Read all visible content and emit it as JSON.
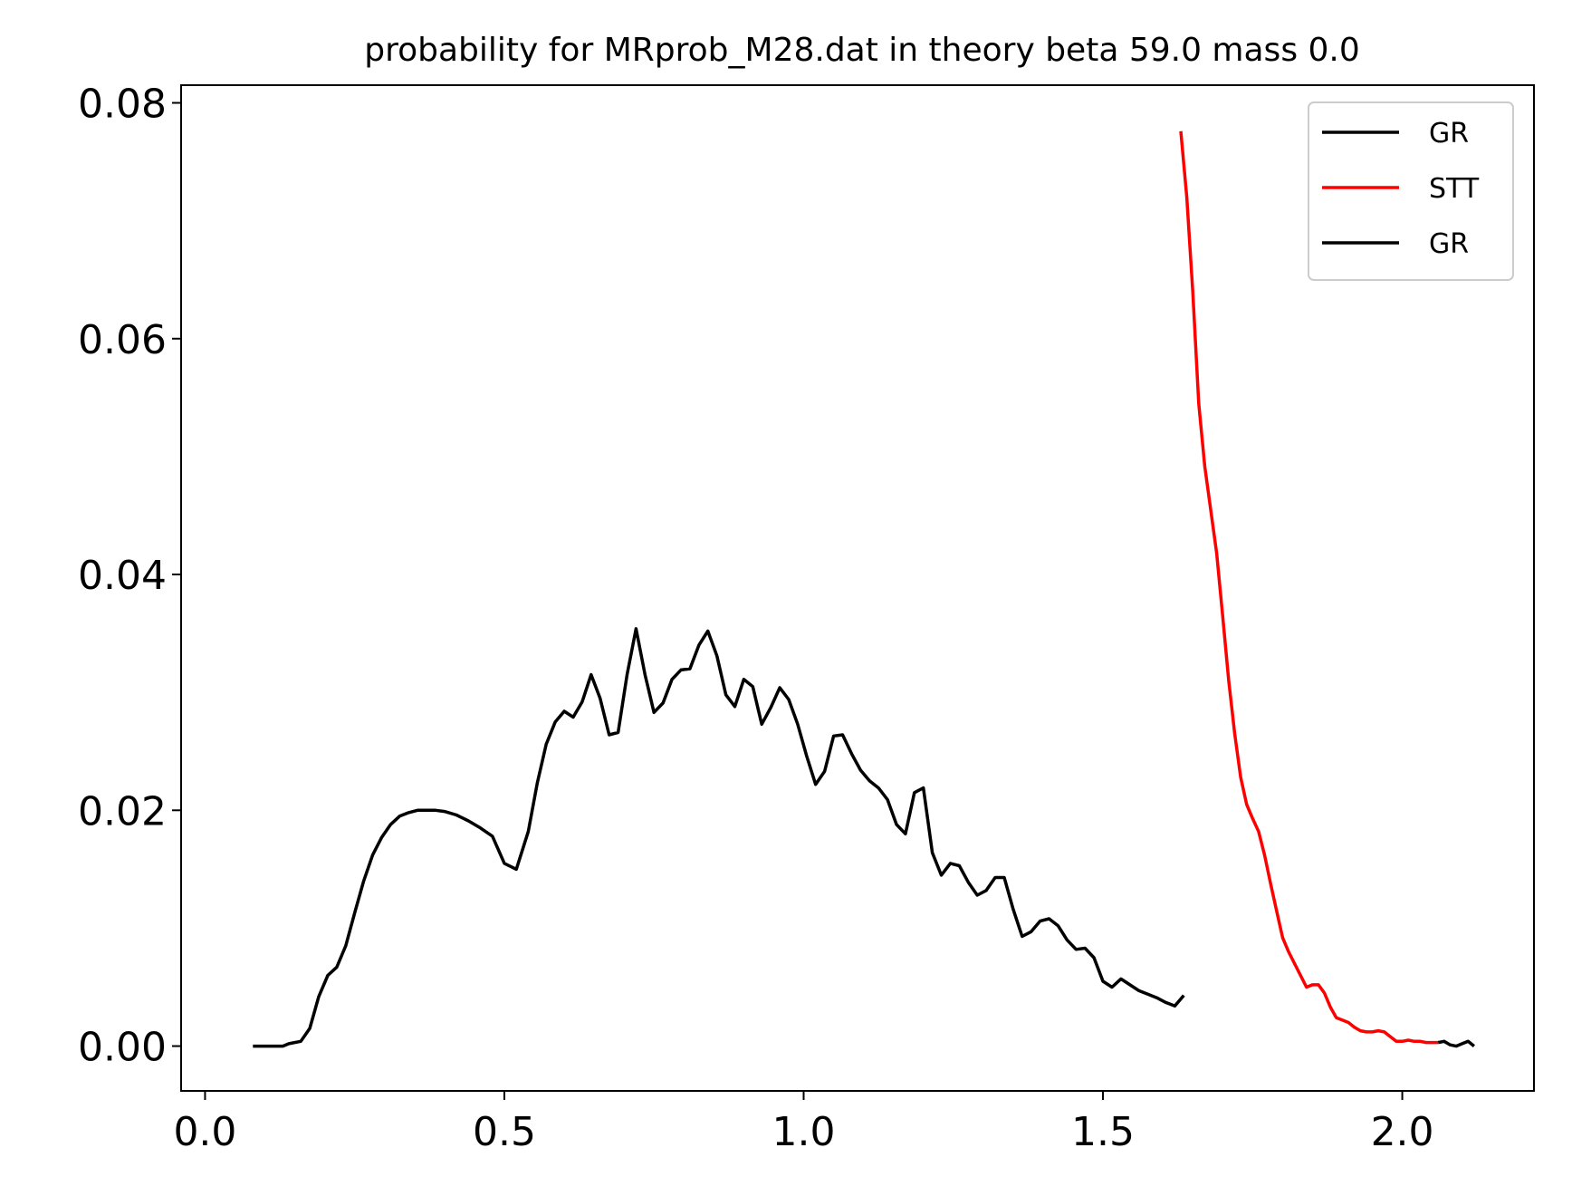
{
  "chart_data": {
    "type": "line",
    "title": "probability for MRprob_M28.dat in theory beta 59.0 mass 0.0",
    "xlabel": "",
    "ylabel": "",
    "xlim": [
      -0.04,
      2.22
    ],
    "ylim": [
      -0.0038,
      0.0815
    ],
    "xticks": [
      0.0,
      0.5,
      1.0,
      1.5,
      2.0
    ],
    "xtick_labels": [
      "0.0",
      "0.5",
      "1.0",
      "1.5",
      "2.0"
    ],
    "yticks": [
      0.0,
      0.02,
      0.04,
      0.06,
      0.08
    ],
    "ytick_labels": [
      "0.00",
      "0.02",
      "0.04",
      "0.06",
      "0.08"
    ],
    "grid": false,
    "legend_position": "upper right",
    "legend": [
      "GR",
      "STT",
      "GR"
    ],
    "series": [
      {
        "name": "GR",
        "color": "#000000",
        "x": [
          0.08,
          0.09,
          0.1,
          0.11,
          0.12,
          0.13,
          0.14,
          0.16,
          0.175,
          0.19,
          0.205,
          0.22,
          0.235,
          0.25,
          0.265,
          0.28,
          0.295,
          0.31,
          0.325,
          0.34,
          0.355,
          0.37,
          0.385,
          0.4,
          0.42,
          0.44,
          0.46,
          0.48,
          0.5,
          0.52,
          0.54,
          0.555,
          0.57,
          0.585,
          0.6,
          0.615,
          0.63,
          0.645,
          0.66,
          0.675,
          0.69,
          0.705,
          0.72,
          0.735,
          0.75,
          0.765,
          0.78,
          0.795,
          0.81,
          0.825,
          0.84,
          0.855,
          0.87,
          0.885,
          0.9,
          0.915,
          0.93,
          0.945,
          0.96,
          0.975,
          0.99,
          1.005,
          1.02,
          1.035,
          1.05,
          1.065,
          1.08,
          1.095,
          1.11,
          1.125,
          1.14,
          1.155,
          1.17,
          1.185,
          1.2,
          1.215,
          1.23,
          1.245,
          1.26,
          1.275,
          1.29,
          1.305,
          1.32,
          1.335,
          1.35,
          1.365,
          1.38,
          1.395,
          1.41,
          1.425,
          1.44,
          1.455,
          1.47,
          1.485,
          1.5,
          1.515,
          1.53,
          1.545,
          1.56,
          1.575,
          1.59,
          1.605,
          1.62,
          1.635
        ],
        "y": [
          0.0,
          0.0,
          0.0,
          0.0,
          0.0,
          0.0,
          0.0002,
          0.0004,
          0.0015,
          0.0042,
          0.006,
          0.0067,
          0.0085,
          0.0113,
          0.014,
          0.0162,
          0.0177,
          0.0188,
          0.0195,
          0.0198,
          0.02,
          0.02,
          0.02,
          0.0199,
          0.0196,
          0.0191,
          0.0185,
          0.0178,
          0.0155,
          0.015,
          0.0182,
          0.0223,
          0.0256,
          0.0275,
          0.0284,
          0.0279,
          0.0292,
          0.0315,
          0.0295,
          0.0264,
          0.0266,
          0.0315,
          0.0354,
          0.0315,
          0.0283,
          0.0291,
          0.0311,
          0.0319,
          0.032,
          0.034,
          0.0352,
          0.0331,
          0.0298,
          0.0288,
          0.0311,
          0.0305,
          0.0273,
          0.0287,
          0.0304,
          0.0294,
          0.0273,
          0.0246,
          0.0222,
          0.0233,
          0.0263,
          0.0264,
          0.0248,
          0.0234,
          0.0225,
          0.0219,
          0.0209,
          0.0188,
          0.018,
          0.0215,
          0.0219,
          0.0164,
          0.0145,
          0.0155,
          0.0153,
          0.0139,
          0.0128,
          0.0132,
          0.0143,
          0.0143,
          0.0116,
          0.0093,
          0.0097,
          0.0106,
          0.0108,
          0.0102,
          0.009,
          0.0082,
          0.0083,
          0.0075,
          0.0055,
          0.005,
          0.0057,
          0.0052,
          0.0047,
          0.0044,
          0.0041,
          0.0037,
          0.0034,
          0.0043
        ]
      },
      {
        "name": "STT",
        "color": "#ff0000",
        "x": [
          1.63,
          1.64,
          1.65,
          1.66,
          1.67,
          1.68,
          1.69,
          1.7,
          1.71,
          1.72,
          1.73,
          1.74,
          1.75,
          1.76,
          1.77,
          1.78,
          1.79,
          1.8,
          1.81,
          1.82,
          1.83,
          1.84,
          1.85,
          1.86,
          1.87,
          1.88,
          1.89,
          1.9,
          1.91,
          1.92,
          1.93,
          1.94,
          1.95,
          1.96,
          1.97,
          1.98,
          1.99,
          2.0,
          2.01,
          2.02,
          2.03,
          2.04,
          2.05,
          2.06
        ],
        "y": [
          0.0776,
          0.072,
          0.064,
          0.0545,
          0.0492,
          0.0455,
          0.0418,
          0.0365,
          0.031,
          0.0265,
          0.0228,
          0.0205,
          0.0193,
          0.0182,
          0.0162,
          0.0138,
          0.0115,
          0.0092,
          0.008,
          0.007,
          0.006,
          0.005,
          0.0052,
          0.0052,
          0.0045,
          0.0033,
          0.0024,
          0.0022,
          0.002,
          0.0016,
          0.0013,
          0.0012,
          0.0012,
          0.0013,
          0.0012,
          0.0008,
          0.0004,
          0.0004,
          0.0005,
          0.0004,
          0.0004,
          0.0003,
          0.0003,
          0.0003
        ]
      },
      {
        "name": "GR",
        "color": "#000000",
        "x": [
          2.06,
          2.07,
          2.08,
          2.09,
          2.1,
          2.11,
          2.12
        ],
        "y": [
          0.0003,
          0.0004,
          0.0001,
          0.0,
          0.0002,
          0.0004,
          0.0
        ]
      }
    ]
  }
}
